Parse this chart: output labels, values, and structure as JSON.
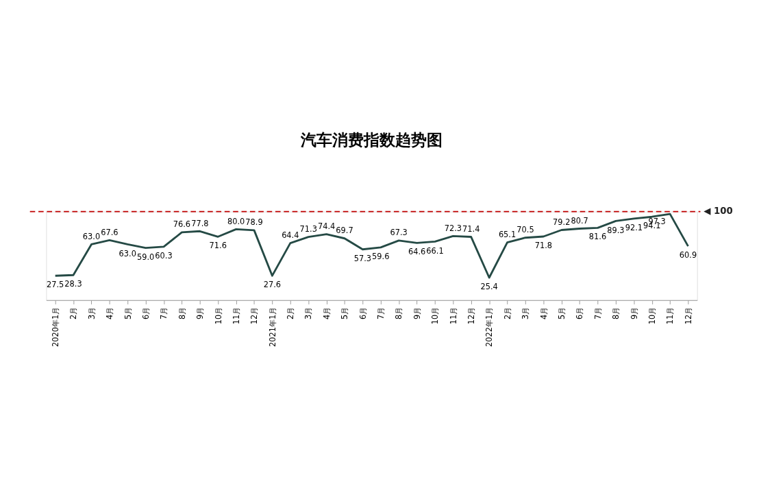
{
  "chart_data": {
    "type": "line",
    "title": "汽车消费指数趋势图",
    "categories": [
      "2020年1月",
      "2月",
      "3月",
      "4月",
      "5月",
      "6月",
      "7月",
      "8月",
      "9月",
      "10月",
      "11月",
      "12月",
      "2021年1月",
      "2月",
      "3月",
      "4月",
      "5月",
      "6月",
      "7月",
      "8月",
      "9月",
      "10月",
      "11月",
      "12月",
      "2022年1月",
      "2月",
      "3月",
      "4月",
      "5月",
      "6月",
      "7月",
      "8月",
      "9月",
      "10月",
      "11月",
      "12月"
    ],
    "series": [
      {
        "color": "#254a45",
        "values": [
          27.5,
          28.3,
          63.0,
          67.6,
          63.0,
          59.0,
          60.3,
          76.6,
          77.8,
          71.6,
          80.0,
          78.9,
          27.6,
          64.4,
          71.3,
          74.4,
          69.7,
          57.3,
          59.6,
          67.3,
          64.6,
          66.1,
          72.3,
          71.4,
          25.4,
          65.1,
          70.5,
          71.8,
          79.2,
          80.7,
          81.6,
          89.3,
          92.1,
          94.1,
          97.3,
          60.9
        ],
        "value_labels": [
          "27.5",
          "28.3",
          "63.0",
          "67.6",
          "63.0",
          "59.0",
          "60.3",
          "76.6",
          "77.8",
          "71.6",
          "80.0",
          "78.9",
          "27.6",
          "64.4",
          "71.3",
          "74.4",
          "69.7",
          "57.3",
          "59.6",
          "67.3",
          "64.6",
          "66.1",
          "72.3",
          "71.4",
          "25.4",
          "65.1",
          "70.5",
          "71.8",
          "79.2",
          "80.7",
          "81.6",
          "89.3",
          "92.1",
          "94.1",
          "97.3",
          "60.9"
        ]
      }
    ],
    "ylim": [
      0,
      100
    ],
    "ref_lines": [
      {
        "axis": "y",
        "value": 100,
        "label": "◀ 100",
        "color": "#c00000",
        "line_style": "dashed"
      }
    ],
    "legend": false,
    "grid": false,
    "tick_labels": "x",
    "marker": "none",
    "line_style": "solid"
  }
}
